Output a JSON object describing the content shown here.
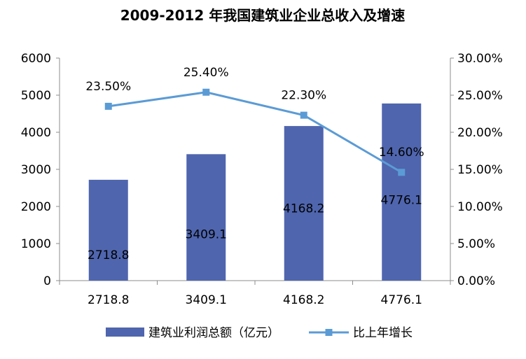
{
  "chart_data": {
    "type": "bar",
    "title": "2009-2012 年我国建筑业企业总收入及增速",
    "categories": [
      "2718.8",
      "3409.1",
      "4168.2",
      "4776.1"
    ],
    "series": [
      {
        "name": "建筑业利润总额（亿元）",
        "type": "bar",
        "axis": "left",
        "color": "#4F65AE",
        "values": [
          2718.8,
          3409.1,
          4168.2,
          4776.1
        ],
        "labels": [
          "2718.8",
          "3409.1",
          "4168.2",
          "4776.1"
        ]
      },
      {
        "name": "比上年增长",
        "type": "line",
        "axis": "right",
        "color": "#5B9BD5",
        "marker_color": "#5B9BD5",
        "values": [
          0.235,
          0.254,
          0.223,
          0.146
        ],
        "labels": [
          "23.50%",
          "25.40%",
          "22.30%",
          "14.60%"
        ]
      }
    ],
    "y_left": {
      "min": 0,
      "max": 6000,
      "ticks": [
        0,
        1000,
        2000,
        3000,
        4000,
        5000,
        6000
      ]
    },
    "y_right": {
      "min": 0,
      "max": 0.3,
      "ticks": [
        0,
        0.05,
        0.1,
        0.15,
        0.2,
        0.25,
        0.3
      ],
      "tick_labels": [
        "0.00%",
        "5.00%",
        "10.00%",
        "15.00%",
        "20.00%",
        "25.00%",
        "30.00%"
      ]
    },
    "grid": false,
    "legend_position": "bottom"
  }
}
